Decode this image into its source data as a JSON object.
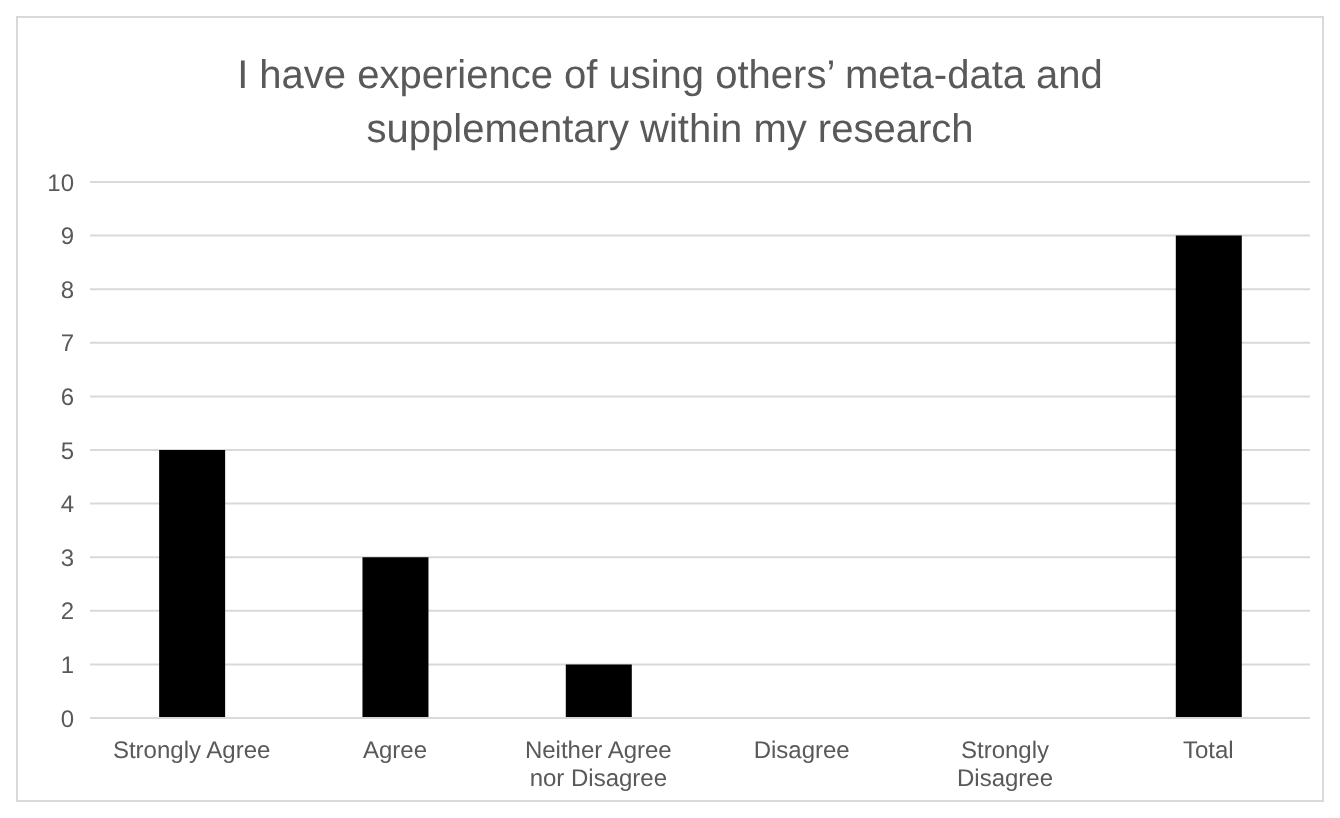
{
  "chart_data": {
    "type": "bar",
    "title": "I have experience of using others’ meta-data and supplementary within my research",
    "categories": [
      "Strongly Agree",
      "Agree",
      "Neither Agree nor Disagree",
      "Disagree",
      "Strongly Disagree",
      "Total"
    ],
    "values": [
      5,
      3,
      1,
      0,
      0,
      9
    ],
    "color": "#000000",
    "ylim": [
      0,
      10
    ],
    "yticks": [
      0,
      1,
      2,
      3,
      4,
      5,
      6,
      7,
      8,
      9,
      10
    ],
    "grid": "y",
    "legend": false
  }
}
